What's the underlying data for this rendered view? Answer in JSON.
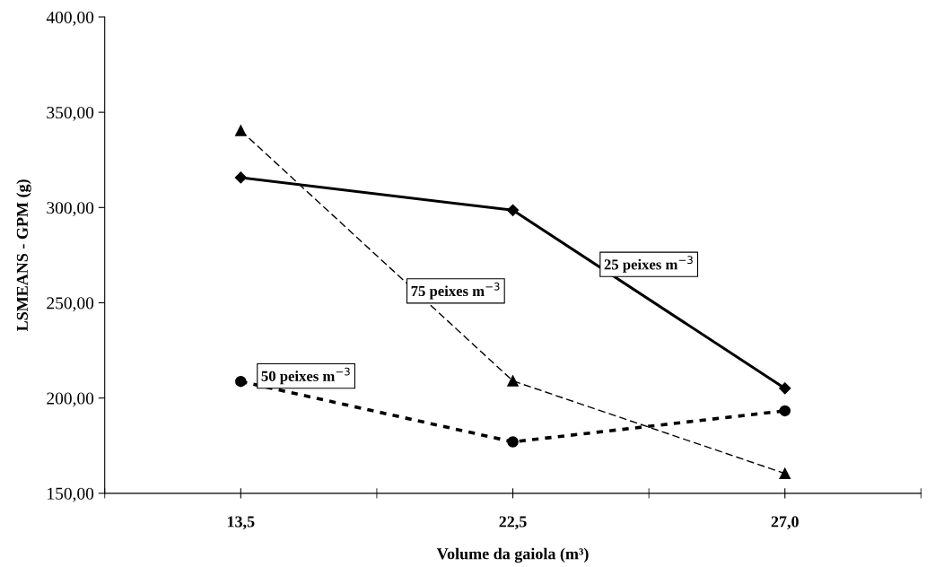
{
  "chart_data": {
    "type": "line",
    "xlabel": "Volume da gaiola (m³)",
    "ylabel": "LSMEANS - GPM (g)",
    "categories": [
      "13,5",
      "22,5",
      "27,0"
    ],
    "ylim": [
      150,
      400
    ],
    "yticks": [
      {
        "value": 150,
        "label": "150,00"
      },
      {
        "value": 200,
        "label": "200,00"
      },
      {
        "value": 250,
        "label": "250,00"
      },
      {
        "value": 300,
        "label": "300,00"
      },
      {
        "value": 350,
        "label": "350,00"
      },
      {
        "value": 400,
        "label": "400,00"
      }
    ],
    "grid": false,
    "legend": false,
    "series": [
      {
        "name": "25 peixes m$^{−3}$",
        "color": "#000000",
        "values": [
          315.7,
          298.6,
          205.1
        ],
        "marker": "diamond",
        "line_style": "solid"
      },
      {
        "name": "75 peixes m$^{−3}$",
        "color": "#000000",
        "values": [
          340.4,
          209.0,
          160.4
        ],
        "marker": "triangle",
        "line_style": "dashed"
      },
      {
        "name": "50 peixes m$^{−3}$",
        "color": "#000000",
        "values": [
          208.7,
          177.0,
          193.3
        ],
        "marker": "circle",
        "line_style": "dotted"
      }
    ]
  }
}
